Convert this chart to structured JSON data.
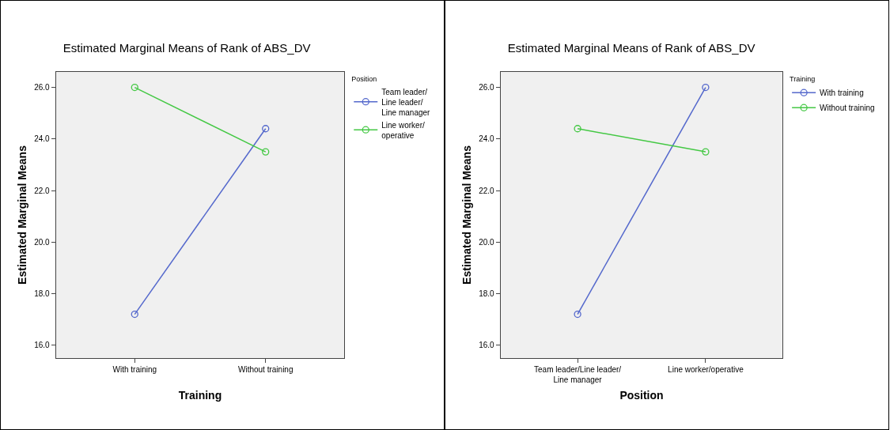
{
  "chart_data": [
    {
      "type": "line",
      "title": "Estimated Marginal Means of Rank of ABS_DV",
      "xlabel": "Training",
      "ylabel": "Estimated Marginal Means",
      "legend_title": "Position",
      "categories": [
        "With training",
        "Without training"
      ],
      "series": [
        {
          "name": "Team leader/Line leader/Line manager",
          "color": "#5468cc",
          "values": [
            17.2,
            24.4
          ]
        },
        {
          "name": "Line worker/operative",
          "color": "#44c844",
          "values": [
            26.0,
            23.5
          ]
        }
      ],
      "ylim": [
        15.5,
        26.6
      ],
      "yticks": [
        {
          "value": 16,
          "label": "16.0"
        },
        {
          "value": 18,
          "label": "18.0"
        },
        {
          "value": 20,
          "label": "20.0"
        },
        {
          "value": 22,
          "label": "22.0"
        },
        {
          "value": 24,
          "label": "24.0"
        },
        {
          "value": 26,
          "label": "26.0"
        }
      ],
      "grid": false,
      "legend": "top right",
      "marker": "circle",
      "line_style": "solid"
    },
    {
      "type": "line",
      "title": "Estimated Marginal Means of Rank of ABS_DV",
      "xlabel": "Position",
      "ylabel": "Estimated Marginal Means",
      "legend_title": "Training",
      "categories": [
        "Team leader/Line leader/Line manager",
        "Line worker/operative"
      ],
      "series": [
        {
          "name": "With training",
          "color": "#5468cc",
          "values": [
            17.2,
            26.0
          ]
        },
        {
          "name": "Without training",
          "color": "#44c844",
          "values": [
            24.4,
            23.5
          ]
        }
      ],
      "ylim": [
        15.5,
        26.6
      ],
      "yticks": [
        {
          "value": 16,
          "label": "16.0"
        },
        {
          "value": 18,
          "label": "18.0"
        },
        {
          "value": 20,
          "label": "20.0"
        },
        {
          "value": 22,
          "label": "22.0"
        },
        {
          "value": 24,
          "label": "24.0"
        },
        {
          "value": 26,
          "label": "26.0"
        }
      ],
      "grid": false,
      "legend": "top right",
      "marker": "circle",
      "line_style": "solid"
    }
  ]
}
